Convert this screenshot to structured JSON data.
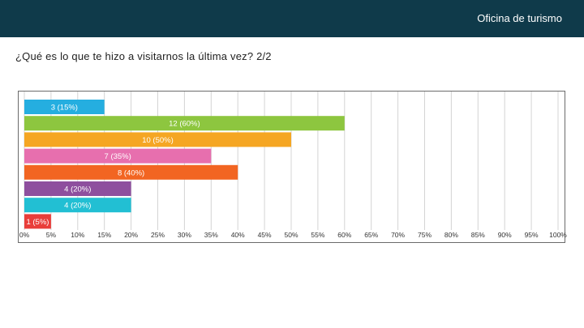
{
  "header": {
    "brand": "Oficina de turismo"
  },
  "question": {
    "text": "¿Qué es lo que te hizo a visitarnos la última vez? 2/2"
  },
  "chart_data": {
    "type": "bar",
    "orientation": "horizontal",
    "bars": [
      {
        "count": 3,
        "value": 15,
        "label": "3 (15%)",
        "color": "#25aee0"
      },
      {
        "count": 12,
        "value": 60,
        "label": "12 (60%)",
        "color": "#8dc63f"
      },
      {
        "count": 10,
        "value": 50,
        "label": "10 (50%)",
        "color": "#f5a623"
      },
      {
        "count": 7,
        "value": 35,
        "label": "7 (35%)",
        "color": "#e76fae"
      },
      {
        "count": 8,
        "value": 40,
        "label": "8 (40%)",
        "color": "#f26522"
      },
      {
        "count": 4,
        "value": 20,
        "label": "4 (20%)",
        "color": "#8e4f9e"
      },
      {
        "count": 4,
        "value": 20,
        "label": "4 (20%)",
        "color": "#22bfd3"
      },
      {
        "count": 1,
        "value": 5,
        "label": "1 (5%)",
        "color": "#e93e3a"
      }
    ],
    "xlim": [
      0,
      100
    ],
    "xticks": [
      "0%",
      "5%",
      "10%",
      "15%",
      "20%",
      "25%",
      "30%",
      "35%",
      "40%",
      "45%",
      "50%",
      "55%",
      "60%",
      "65%",
      "70%",
      "75%",
      "80%",
      "85%",
      "90%",
      "95%",
      "100%"
    ],
    "grid": true
  }
}
